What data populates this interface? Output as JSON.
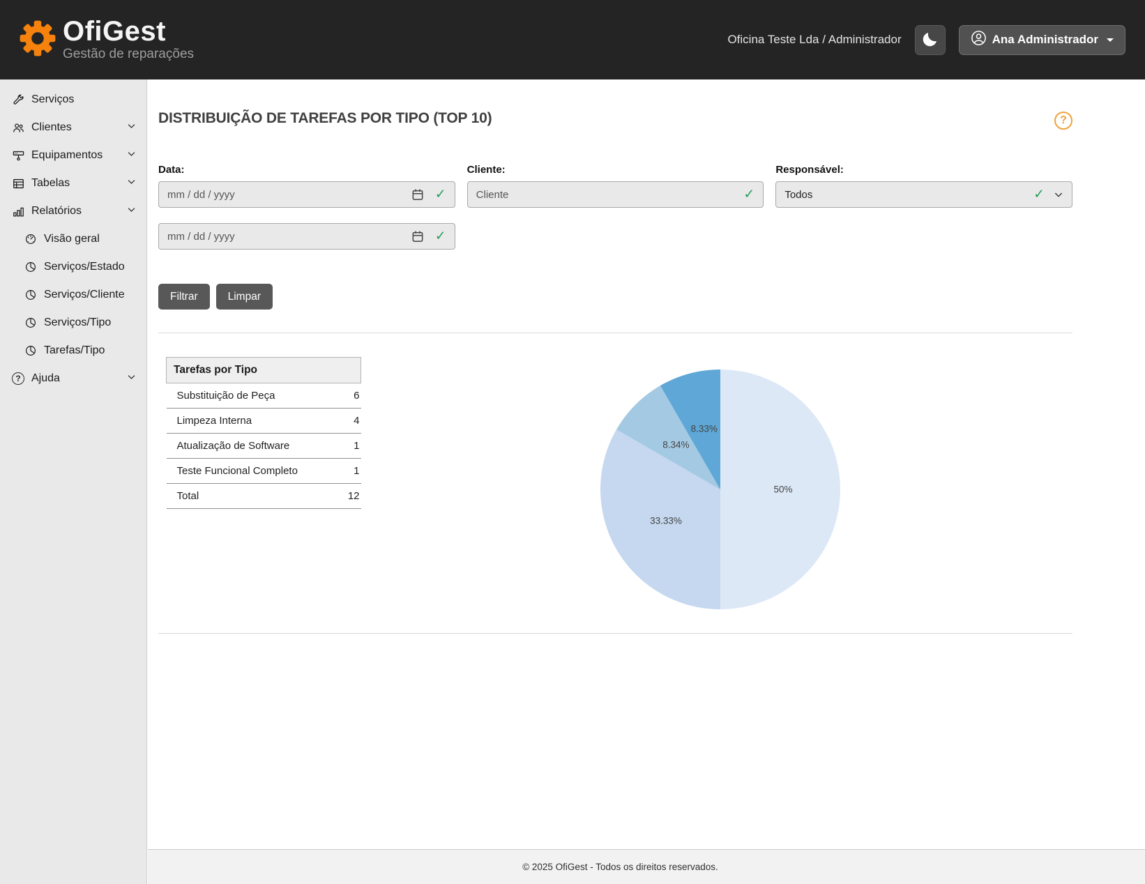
{
  "header": {
    "app_name": "OfiGest",
    "app_subtitle": "Gestão de reparações",
    "org_context": "Oficina Teste Lda / Administrador",
    "user_name": "Ana Administrador"
  },
  "sidebar": {
    "items": [
      {
        "label": "Serviços",
        "icon": "wrench-icon",
        "has_submenu": false
      },
      {
        "label": "Clientes",
        "icon": "people-icon",
        "has_submenu": true
      },
      {
        "label": "Equipamentos",
        "icon": "device-icon",
        "has_submenu": true
      },
      {
        "label": "Tabelas",
        "icon": "table-icon",
        "has_submenu": true
      },
      {
        "label": "Relatórios",
        "icon": "bar-chart-icon",
        "has_submenu": true
      }
    ],
    "submenu": [
      {
        "label": "Visão geral",
        "icon": "gauge-icon"
      },
      {
        "label": "Serviços/Estado",
        "icon": "pie-icon"
      },
      {
        "label": "Serviços/Cliente",
        "icon": "pie-icon"
      },
      {
        "label": "Serviços/Tipo",
        "icon": "pie-icon"
      },
      {
        "label": "Tarefas/Tipo",
        "icon": "pie-icon"
      }
    ],
    "help_label": "Ajuda"
  },
  "page": {
    "title": "DISTRIBUIÇÃO DE TAREFAS POR TIPO (TOP 10)"
  },
  "filters": {
    "data": {
      "label": "Data:",
      "from_placeholder": "mm / dd / yyyy",
      "to_placeholder": "mm / dd / yyyy"
    },
    "cliente": {
      "label": "Cliente:",
      "placeholder": "Cliente"
    },
    "responsavel": {
      "label": "Responsável:",
      "value": "Todos"
    },
    "filtrar": "Filtrar",
    "limpar": "Limpar"
  },
  "table": {
    "header": "Tarefas por Tipo",
    "rows": [
      {
        "label": "Substituição de Peça",
        "value": "6"
      },
      {
        "label": "Limpeza Interna",
        "value": "4"
      },
      {
        "label": "Atualização de Software",
        "value": "1"
      },
      {
        "label": "Teste Funcional Completo",
        "value": "1"
      }
    ],
    "total": {
      "label": "Total",
      "value": "12"
    }
  },
  "chart_data": {
    "type": "pie",
    "title": "Tarefas por Tipo",
    "labels": [
      "Substituição de Peça",
      "Limpeza Interna",
      "Atualização de Software",
      "Teste Funcional Completo"
    ],
    "values": [
      6,
      4,
      1,
      1
    ],
    "total": 12,
    "percent_labels": [
      "50%",
      "33.33%",
      "8.34%",
      "8.33%"
    ],
    "colors": [
      "#dde8f7",
      "#c5d8ef",
      "#a4c9e3",
      "#5ea7d6"
    ],
    "start_angle_deg": 0,
    "direction": "clockwise",
    "legend": "none"
  },
  "icons": {
    "check": "✓",
    "question": "?"
  },
  "footer": {
    "copyright": "© 2025 OfiGest - Todos os direitos reservados."
  }
}
